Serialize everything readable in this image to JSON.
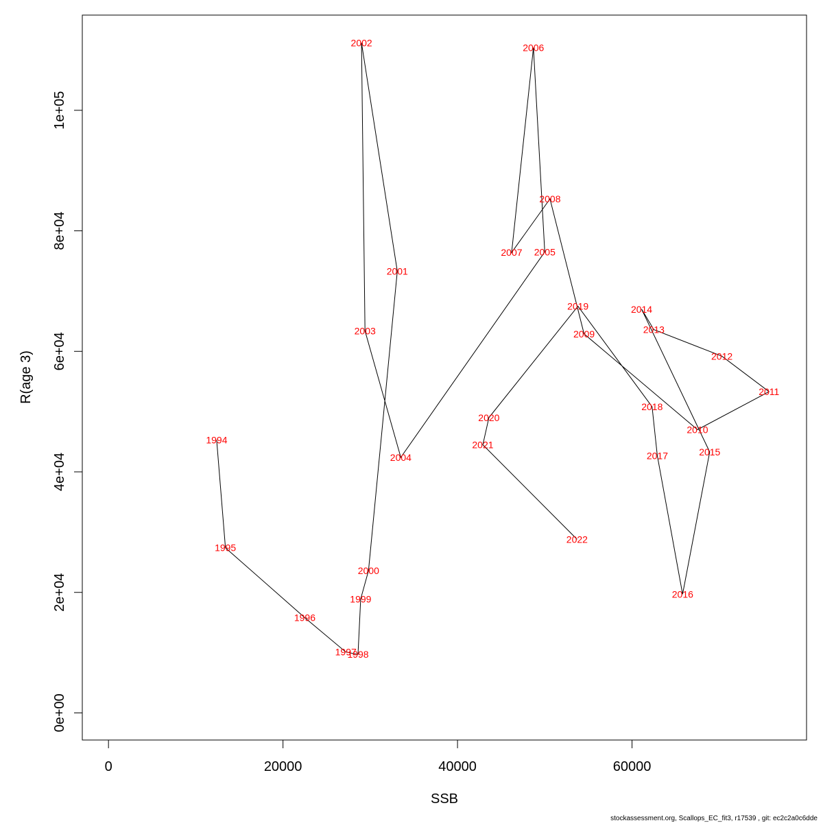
{
  "chart_data": {
    "type": "line",
    "xlabel": "SSB",
    "ylabel": "R(age 3)",
    "xlim": [
      -3000,
      80000
    ],
    "ylim": [
      -4500,
      115800
    ],
    "x_ticks": [
      0,
      20000,
      40000,
      60000
    ],
    "x_tick_labels": [
      "0",
      "20000",
      "40000",
      "60000"
    ],
    "y_ticks": [
      0,
      20000,
      40000,
      60000,
      80000,
      100000
    ],
    "y_tick_labels": [
      "0e+00",
      "2e+04",
      "4e+04",
      "6e+04",
      "8e+04",
      "1e+05"
    ],
    "grid": false,
    "line_color": "#000000",
    "label_color": "#ff0000",
    "points": [
      {
        "label": "1994",
        "x": 12400,
        "y": 45300
      },
      {
        "label": "1995",
        "x": 13400,
        "y": 27400
      },
      {
        "label": "1996",
        "x": 22500,
        "y": 15800
      },
      {
        "label": "1997",
        "x": 27200,
        "y": 10100
      },
      {
        "label": "1998",
        "x": 28600,
        "y": 9700
      },
      {
        "label": "1999",
        "x": 28900,
        "y": 18900
      },
      {
        "label": "2000",
        "x": 29800,
        "y": 23600
      },
      {
        "label": "2001",
        "x": 33100,
        "y": 73300
      },
      {
        "label": "2002",
        "x": 29000,
        "y": 111200
      },
      {
        "label": "2003",
        "x": 29400,
        "y": 63400
      },
      {
        "label": "2004",
        "x": 33500,
        "y": 42400
      },
      {
        "label": "2005",
        "x": 50000,
        "y": 76500
      },
      {
        "label": "2006",
        "x": 48700,
        "y": 110400
      },
      {
        "label": "2007",
        "x": 46200,
        "y": 76400
      },
      {
        "label": "2008",
        "x": 50600,
        "y": 85300
      },
      {
        "label": "2009",
        "x": 54500,
        "y": 62900
      },
      {
        "label": "2010",
        "x": 67500,
        "y": 47000
      },
      {
        "label": "2011",
        "x": 75700,
        "y": 53300
      },
      {
        "label": "2012",
        "x": 70300,
        "y": 59200
      },
      {
        "label": "2013",
        "x": 62500,
        "y": 63600
      },
      {
        "label": "2014",
        "x": 61100,
        "y": 67000
      },
      {
        "label": "2015",
        "x": 68900,
        "y": 43300
      },
      {
        "label": "2016",
        "x": 65800,
        "y": 19700
      },
      {
        "label": "2017",
        "x": 62900,
        "y": 42700
      },
      {
        "label": "2018",
        "x": 62300,
        "y": 50800
      },
      {
        "label": "2019",
        "x": 53800,
        "y": 67500
      },
      {
        "label": "2020",
        "x": 43600,
        "y": 49000
      },
      {
        "label": "2021",
        "x": 42900,
        "y": 44500
      },
      {
        "label": "2022",
        "x": 53700,
        "y": 28800
      }
    ]
  },
  "footer_text": "stockassessment.org, Scallops_EC_fit3, r17539 , git: ec2c2a0c6dde"
}
